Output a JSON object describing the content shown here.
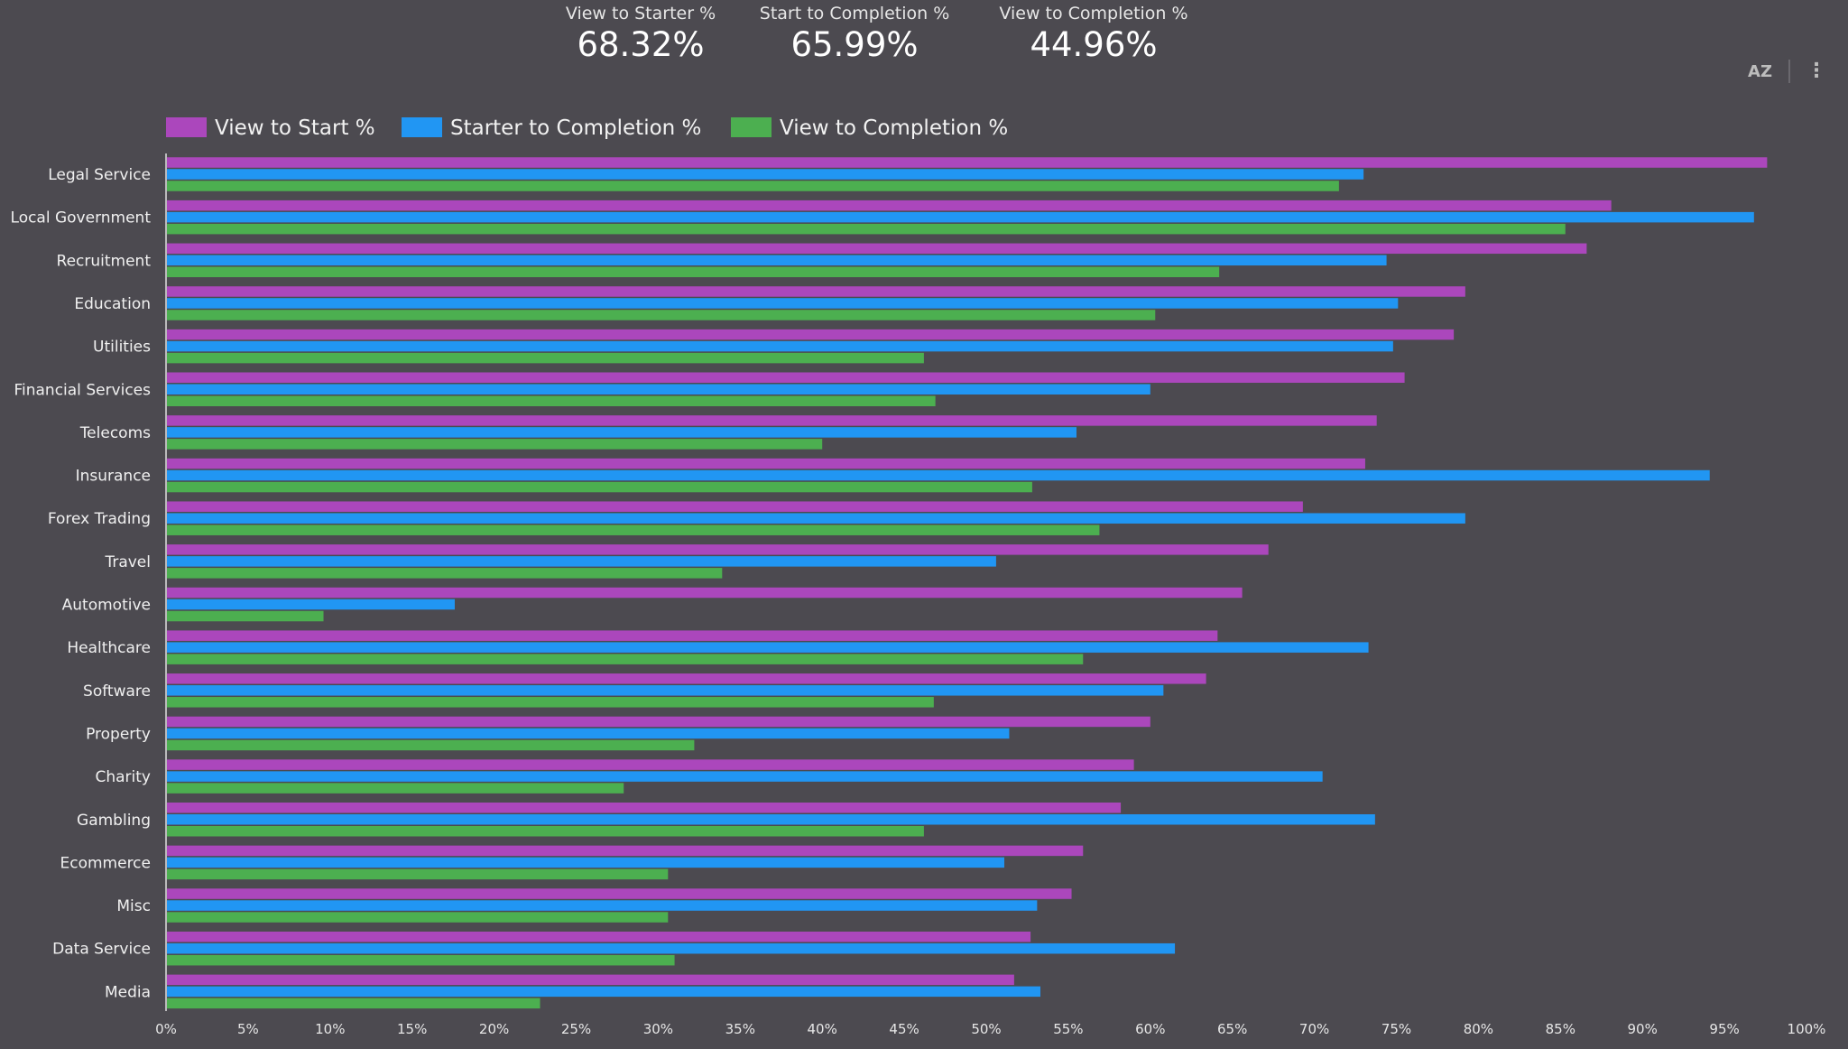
{
  "kpis": [
    {
      "label": "View to Starter %",
      "value": "68.32%"
    },
    {
      "label": "Start to Completion %",
      "value": "65.99%"
    },
    {
      "label": "View to Completion %",
      "value": "44.96%"
    }
  ],
  "toolbar": {
    "sort_icon": "sort-az-icon",
    "sort_label": "AZ",
    "menu_icon": "more-vertical-icon"
  },
  "chart_data": {
    "type": "bar",
    "orientation": "horizontal",
    "xlim": [
      0,
      100
    ],
    "x_ticks": [
      "0%",
      "5%",
      "10%",
      "15%",
      "20%",
      "25%",
      "30%",
      "35%",
      "40%",
      "45%",
      "50%",
      "55%",
      "60%",
      "65%",
      "70%",
      "75%",
      "80%",
      "85%",
      "90%",
      "95%",
      "100%"
    ],
    "grid": false,
    "legend_position": "top-left",
    "categories": [
      "Legal Service",
      "Local Government",
      "Recruitment",
      "Education",
      "Utilities",
      "Financial Services",
      "Telecoms",
      "Insurance",
      "Forex Trading",
      "Travel",
      "Automotive",
      "Healthcare",
      "Software",
      "Property",
      "Charity",
      "Gambling",
      "Ecommerce",
      "Misc",
      "Data Service",
      "Media"
    ],
    "series": [
      {
        "name": "View to Start %",
        "color": "#ab47bc",
        "values": [
          97.6,
          88.1,
          86.6,
          79.2,
          78.5,
          75.5,
          73.8,
          73.1,
          69.3,
          67.2,
          65.6,
          64.1,
          63.4,
          60.0,
          59.0,
          58.2,
          55.9,
          55.2,
          52.7,
          51.7
        ]
      },
      {
        "name": "Starter to Completion %",
        "color": "#2196f3",
        "values": [
          73.0,
          96.8,
          74.4,
          75.1,
          74.8,
          60.0,
          55.5,
          94.1,
          79.2,
          50.6,
          17.6,
          73.3,
          60.8,
          51.4,
          70.5,
          73.7,
          51.1,
          53.1,
          61.5,
          53.3
        ]
      },
      {
        "name": "View to Completion %",
        "color": "#4caf50",
        "values": [
          71.5,
          85.3,
          64.2,
          60.3,
          46.2,
          46.9,
          40.0,
          52.8,
          56.9,
          33.9,
          9.6,
          55.9,
          46.8,
          32.2,
          27.9,
          46.2,
          30.6,
          30.6,
          31.0,
          22.8
        ]
      }
    ]
  }
}
